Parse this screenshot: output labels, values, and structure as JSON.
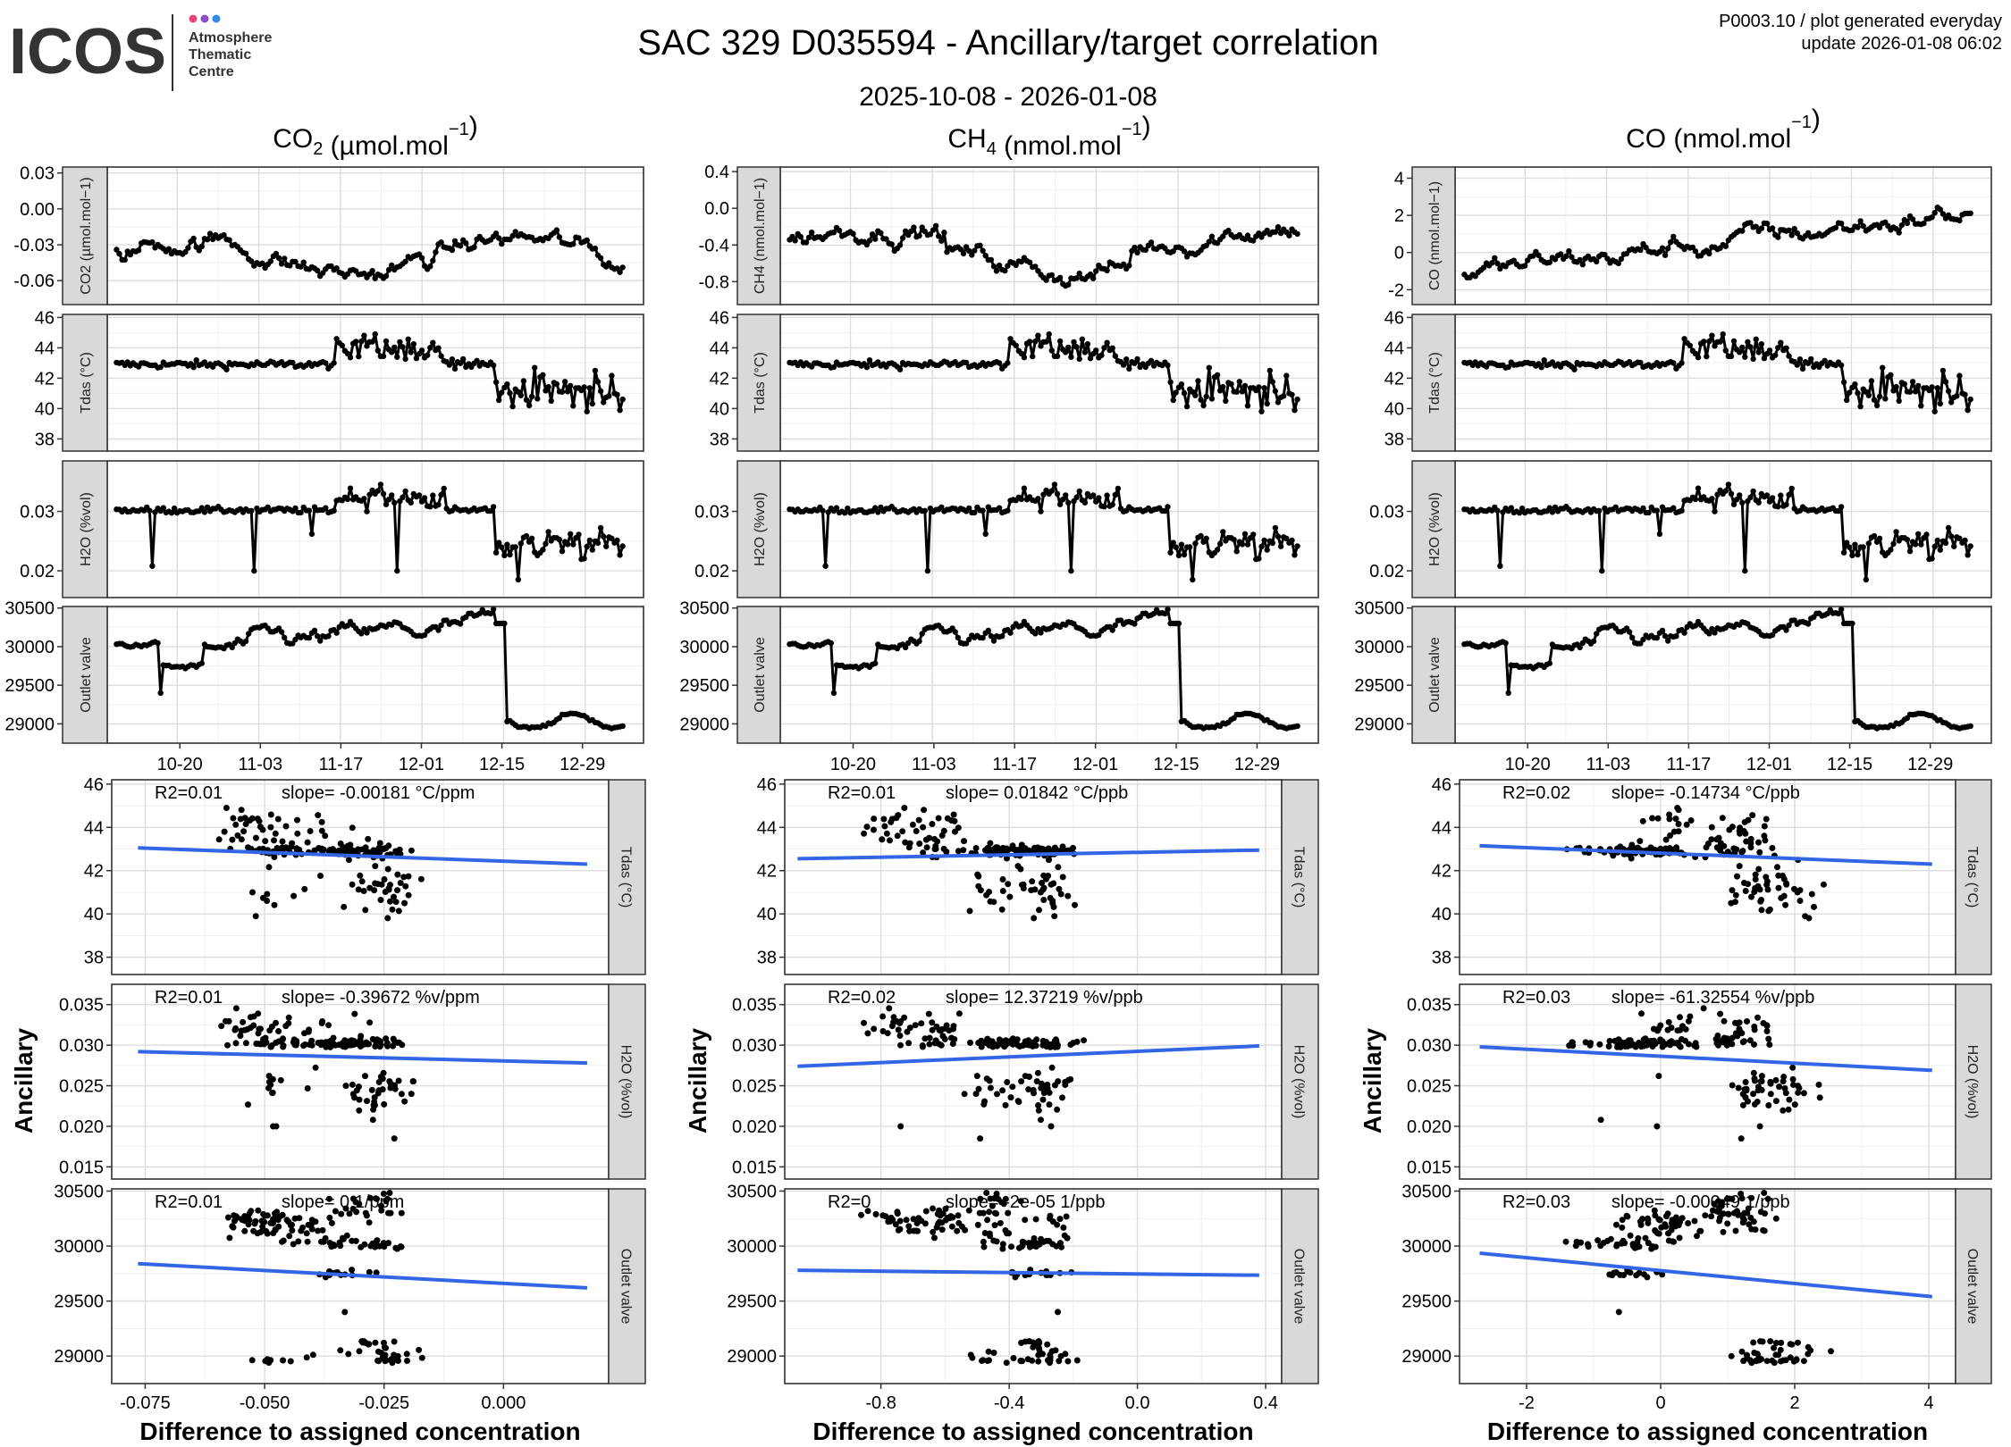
{
  "header": {
    "logo_text": "ICOS",
    "logo_sub1": "Atmosphere",
    "logo_sub2": "Thematic",
    "logo_sub3": "Centre",
    "title": "SAC 329 D035594 - Ancillary/target correlation",
    "date_range": "2025-10-08 - 2026-01-08",
    "meta_line1": "P0003.10 / plot generated everyday",
    "meta_line2": "update  2026-01-08 06:02"
  },
  "colors": {
    "fit_line": "#3366e6",
    "strip_bg": "#d9d9d9",
    "grid_major": "#dddddd",
    "grid_minor": "#f0f0f0",
    "series": "#000000"
  },
  "y_title": "Ancillary",
  "x_title": "Difference to assigned concentration",
  "chart_data": {
    "type": "faceted line + scatter",
    "columns": [
      {
        "id": "co2",
        "header_base": "CO",
        "header_sub": "2",
        "header_rest": " (µmol.mol",
        "header_sup": "−1",
        "header_close": ")",
        "strip_label": "CO2 (µmol.mol−1)",
        "ts_target_range": [
          -0.08,
          0.035
        ],
        "ts_target_ticks": [
          0.03,
          0.0,
          -0.03,
          -0.06
        ],
        "ts_target_tick_labels": [
          "0.03",
          "0.00",
          "-0.03",
          "-0.06"
        ],
        "scatter_x_range": [
          -0.082,
          0.022
        ],
        "scatter_x_ticks": [
          -0.075,
          -0.05,
          -0.025,
          0.0
        ],
        "scatter_x_tick_labels": [
          "-0.075",
          "-0.050",
          "-0.025",
          "0.000"
        ],
        "stats": [
          {
            "r2": "R2=0.01",
            "slope": "slope= -0.00181 °C/ppm"
          },
          {
            "r2": "R2=0.01",
            "slope": "slope= -0.39672 %v/ppm"
          },
          {
            "r2": "R2=0.01",
            "slope": "slope= 0 1/ppm"
          }
        ],
        "fits": [
          [
            -0.0765,
            43.05,
            0.0175,
            42.3
          ],
          [
            -0.0765,
            0.0292,
            0.0175,
            0.0278
          ],
          [
            -0.0765,
            29840,
            0.0175,
            29620
          ]
        ]
      },
      {
        "id": "ch4",
        "header_base": "CH",
        "header_sub": "4",
        "header_rest": " (nmol.mol",
        "header_sup": "−1",
        "header_close": ")",
        "strip_label": "CH4 (nmol.mol−1)",
        "ts_target_range": [
          -1.05,
          0.45
        ],
        "ts_target_ticks": [
          0.4,
          0.0,
          -0.4,
          -0.8
        ],
        "ts_target_tick_labels": [
          "0.4",
          "0.0",
          "-0.4",
          "-0.8"
        ],
        "scatter_x_range": [
          -1.1,
          0.45
        ],
        "scatter_x_ticks": [
          -0.8,
          -0.4,
          0.0,
          0.4
        ],
        "scatter_x_tick_labels": [
          "-0.8",
          "-0.4",
          "0.0",
          "0.4"
        ],
        "stats": [
          {
            "r2": "R2=0.01",
            "slope": "slope= 0.01842 °C/ppb"
          },
          {
            "r2": "R2=0.02",
            "slope": "slope= 12.37219 %v/ppb"
          },
          {
            "r2": "R2=0",
            "slope": "slope= -2e-05 1/ppb"
          }
        ],
        "fits": [
          [
            -1.06,
            42.55,
            0.38,
            42.95
          ],
          [
            -1.06,
            0.0274,
            0.38,
            0.0299
          ],
          [
            -1.06,
            29780,
            0.38,
            29735
          ]
        ]
      },
      {
        "id": "co",
        "header_base": "CO",
        "header_sub": "",
        "header_rest": " (nmol.mol",
        "header_sup": "−1",
        "header_close": ")",
        "strip_label": "CO (nmol.mol−1)",
        "ts_target_range": [
          -2.8,
          4.6
        ],
        "ts_target_ticks": [
          4,
          2,
          0,
          -2
        ],
        "ts_target_tick_labels": [
          "4",
          "2",
          "0",
          "-2"
        ],
        "scatter_x_range": [
          -3.0,
          4.4
        ],
        "scatter_x_ticks": [
          -2,
          0,
          2,
          4
        ],
        "scatter_x_tick_labels": [
          "-2",
          "0",
          "2",
          "4"
        ],
        "stats": [
          {
            "r2": "R2=0.02",
            "slope": "slope= -0.14734 °C/ppb"
          },
          {
            "r2": "R2=0.03",
            "slope": "slope= -61.32554 %v/ppb"
          },
          {
            "r2": "R2=0.03",
            "slope": "slope= -0.00049 1/ppb"
          }
        ],
        "fits": [
          [
            -2.7,
            43.15,
            4.05,
            42.3
          ],
          [
            -2.7,
            0.0298,
            4.05,
            0.0269
          ],
          [
            -2.7,
            29935,
            4.05,
            29540
          ]
        ]
      }
    ],
    "ts_rows": [
      {
        "strip": "Tdas (°C)",
        "range": [
          37.2,
          46.2
        ],
        "ticks": [
          46,
          44,
          42,
          40,
          38
        ],
        "tick_labels": [
          "46",
          "44",
          "42",
          "40",
          "38"
        ]
      },
      {
        "strip": "H2O (%vol)",
        "range": [
          0.0155,
          0.0385
        ],
        "ticks": [
          0.03,
          0.02
        ],
        "tick_labels": [
          "0.03",
          "0.02"
        ]
      },
      {
        "strip": "Outlet valve",
        "range": [
          28750,
          30520
        ],
        "ticks": [
          30500,
          30000,
          29500,
          29000
        ],
        "tick_labels": [
          "30500",
          "30000",
          "29500",
          "29000"
        ]
      }
    ],
    "scatter_rows": [
      {
        "strip": "Tdas (°C)",
        "range": [
          37.2,
          46.2
        ],
        "ticks": [
          46,
          44,
          42,
          40,
          38
        ],
        "tick_labels": [
          "46",
          "44",
          "42",
          "40",
          "38"
        ]
      },
      {
        "strip": "H2O (%vol)",
        "range": [
          0.0135,
          0.0375
        ],
        "ticks": [
          0.035,
          0.03,
          0.025,
          0.02,
          0.015
        ],
        "tick_labels": [
          "0.035",
          "0.030",
          "0.025",
          "0.020",
          "0.015"
        ]
      },
      {
        "strip": "Outlet valve",
        "range": [
          28750,
          30520
        ],
        "ticks": [
          30500,
          30000,
          29500,
          29000
        ],
        "tick_labels": [
          "30500",
          "30000",
          "29500",
          "29000"
        ]
      }
    ],
    "time_axis": {
      "start": "2025-10-08",
      "end": "2026-01-08",
      "span_days": 92,
      "tick_days": [
        12,
        26,
        40,
        54,
        68,
        82
      ],
      "tick_labels": [
        "10-20",
        "11-03",
        "11-17",
        "12-01",
        "12-15",
        "12-29"
      ]
    },
    "timeseries_points_per_panel": 185,
    "scatter_points_per_panel": 220
  }
}
